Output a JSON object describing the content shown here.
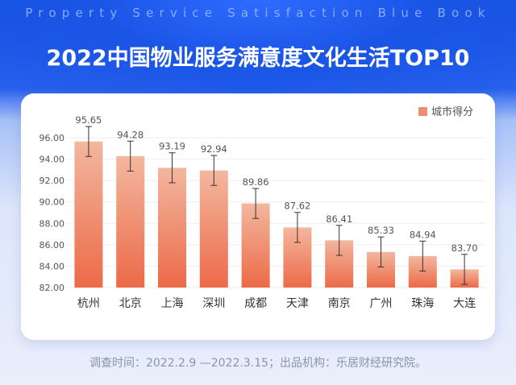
{
  "header": {
    "subtitle_en": "Property Service Satisfaction Blue Book",
    "title": "2022中国物业服务满意度文化生活TOP10"
  },
  "footer": {
    "note": "调查时间：2022.2.9 —2022.3.15；出品机构：乐居财经研究院。"
  },
  "colors": {
    "bar_top": "#f3b79f",
    "bar_bottom": "#ec6a48",
    "legend_swatch": "#ef8d70",
    "error_bar": "#333333"
  },
  "chart_data": {
    "type": "bar",
    "title": "2022中国物业服务满意度文化生活TOP10",
    "legend": {
      "label": "城市得分",
      "position": "top-right"
    },
    "categories": [
      "杭州",
      "北京",
      "上海",
      "深圳",
      "成都",
      "天津",
      "南京",
      "广州",
      "珠海",
      "大连"
    ],
    "series": [
      {
        "name": "城市得分",
        "values": [
          95.65,
          94.28,
          93.19,
          92.94,
          89.86,
          87.62,
          86.41,
          85.33,
          84.94,
          83.7
        ],
        "value_labels": [
          "95.65",
          "94.28",
          "93.19",
          "92.94",
          "89.86",
          "87.62",
          "86.41",
          "85.33",
          "84.94",
          "83.70"
        ],
        "error": [
          1.4,
          1.4,
          1.4,
          1.4,
          1.4,
          1.4,
          1.4,
          1.4,
          1.4,
          1.4
        ]
      }
    ],
    "ylim": [
      82,
      96
    ],
    "yticks": [
      82,
      84,
      86,
      88,
      90,
      92,
      94,
      96
    ],
    "ytick_labels": [
      "82.00",
      "84.00",
      "86.00",
      "88.00",
      "90.00",
      "92.00",
      "94.00",
      "96.00"
    ],
    "grid": true
  }
}
